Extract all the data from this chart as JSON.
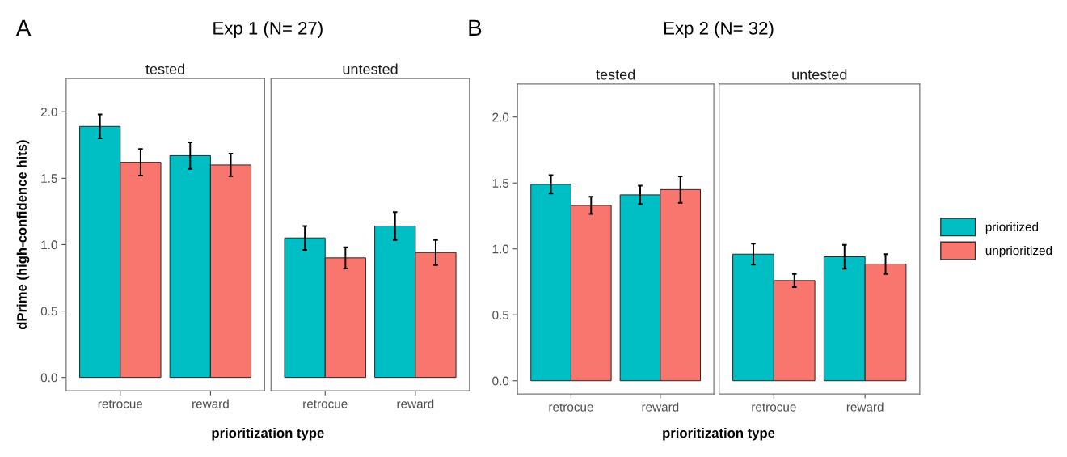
{
  "chart_data": [
    {
      "type": "bar",
      "title": "tested",
      "annotations": [
        "A",
        "Exp 1 (N= 27)"
      ],
      "ylabel": "dPrime (high-confidence hits)",
      "xlabel": "prioritization type",
      "categories": [
        "retrocue",
        "reward"
      ],
      "ylim": [
        -0.1,
        2.25
      ],
      "yticks": [
        {
          "value": 0,
          "label": "0.0"
        },
        {
          "value": 0.5,
          "label": "0.5"
        },
        {
          "value": 1,
          "label": "1.0"
        },
        {
          "value": 1.5,
          "label": "1.5"
        },
        {
          "value": 2,
          "label": "2.0"
        }
      ],
      "grid": false,
      "series": [
        {
          "color": "#00bfc4",
          "values": [
            1.89,
            1.67
          ],
          "errors": [
            0.09,
            0.1
          ]
        },
        {
          "color": "#f8766d",
          "values": [
            1.62,
            1.6
          ],
          "errors": [
            0.1,
            0.085
          ]
        }
      ]
    },
    {
      "type": "bar",
      "title": "untested",
      "categories": [
        "retrocue",
        "reward"
      ],
      "ylim": [
        -0.1,
        2.25
      ],
      "tick_labels": "x",
      "grid": false,
      "series": [
        {
          "color": "#00bfc4",
          "values": [
            1.05,
            1.14
          ],
          "errors": [
            0.09,
            0.105
          ]
        },
        {
          "color": "#f8766d",
          "values": [
            0.9,
            0.94
          ],
          "errors": [
            0.08,
            0.095
          ]
        }
      ]
    },
    {
      "type": "bar",
      "title": "tested",
      "annotations": [
        "B",
        "Exp 2 (N= 32)"
      ],
      "xlabel": "prioritization type",
      "categories": [
        "retrocue",
        "reward"
      ],
      "ylim": [
        -0.1,
        2.25
      ],
      "yticks": [
        {
          "value": 0,
          "label": "0.0"
        },
        {
          "value": 0.5,
          "label": "0.5"
        },
        {
          "value": 1,
          "label": "1.0"
        },
        {
          "value": 1.5,
          "label": "1.5"
        },
        {
          "value": 2,
          "label": "2.0"
        }
      ],
      "grid": false,
      "series": [
        {
          "color": "#00bfc4",
          "values": [
            1.49,
            1.41
          ],
          "errors": [
            0.07,
            0.07
          ]
        },
        {
          "color": "#f8766d",
          "values": [
            1.33,
            1.45
          ],
          "errors": [
            0.065,
            0.1
          ]
        }
      ]
    },
    {
      "type": "bar",
      "title": "untested",
      "categories": [
        "retrocue",
        "reward"
      ],
      "ylim": [
        -0.1,
        2.25
      ],
      "tick_labels": "x",
      "grid": false,
      "legend": "right",
      "series": [
        {
          "name": "prioritized",
          "color": "#00bfc4",
          "values": [
            0.96,
            0.94
          ],
          "errors": [
            0.08,
            0.09
          ]
        },
        {
          "name": "unprioritized",
          "color": "#f8766d",
          "values": [
            0.76,
            0.885
          ],
          "errors": [
            0.05,
            0.075
          ]
        }
      ]
    }
  ]
}
